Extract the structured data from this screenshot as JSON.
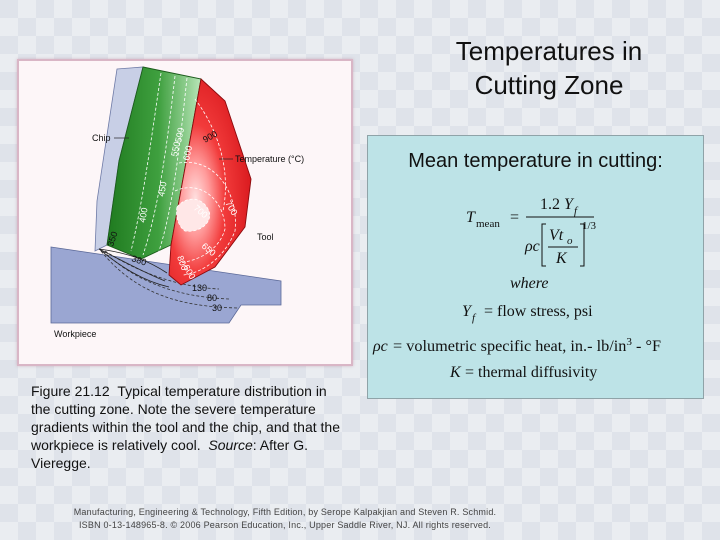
{
  "slide": {
    "title_line1": "Temperatures in",
    "title_line2": "Cutting Zone"
  },
  "figure": {
    "labels": {
      "chip": "Chip",
      "temperature": "Temperature (°C)",
      "tool": "Tool",
      "workpiece": "Workpiece"
    },
    "isotherms": [
      "500",
      "550",
      "600",
      "900",
      "450",
      "400",
      "350",
      "700",
      "650",
      "380",
      "600",
      "700",
      "800",
      "130",
      "80",
      "30"
    ]
  },
  "caption": {
    "figure_number": "Figure 21.12",
    "text_before_source": "Typical temperature distribution in the cutting zone. Note the severe temperature gradients within the tool and the chip, and that the workpiece is relatively cool.",
    "source_label": "Source",
    "source_text": ": After G. Vieregge."
  },
  "formula": {
    "heading": "Mean temperature in cutting:",
    "lhs_T": "T",
    "lhs_sub": "mean",
    "equals": "=",
    "num_coeff": "1.2",
    "num_Y": "Y",
    "num_Y_sub": "f",
    "den_rho_c": "ρc",
    "inner_num_V": "Vt",
    "inner_num_sub": "o",
    "inner_den": "K",
    "exponent": "1/3",
    "where": "where",
    "def1_sym": "Y",
    "def1_sub": "f",
    "def1_text": "= flow stress, psi",
    "def2_sym": "ρc",
    "def2_text": "= volumetric specific heat, in.- lb/in",
    "def2_exp": "3",
    "def2_tail": " - °F",
    "def3_sym": "K",
    "def3_text": "= thermal diffusivity"
  },
  "footer": {
    "line1": "Manufacturing, Engineering & Technology, Fifth Edition, by Serope Kalpakjian and Steven R. Schmid.",
    "line2": "ISBN 0-13-148965-8. © 2006 Pearson Education, Inc., Upper Saddle River, NJ.  All rights reserved."
  },
  "colors": {
    "chip_dark": "#1f7a1f",
    "chip_light": "#8fd08f",
    "tool_dark": "#e0151b",
    "tool_light": "#ffc0c0",
    "workpiece": "#9aa6d2",
    "formula_bg": "#bde3e7"
  }
}
